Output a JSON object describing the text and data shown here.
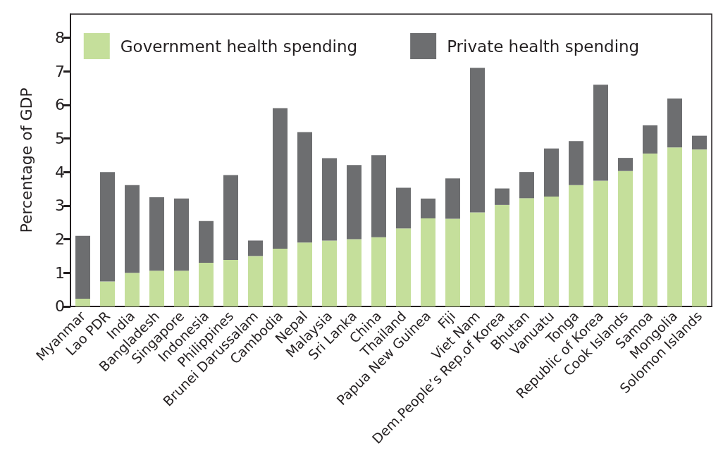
{
  "chart_data": {
    "type": "bar",
    "stacked": true,
    "ylabel": "Percentage of GDP",
    "categories": [
      "Myanmar",
      "Lao PDR",
      "India",
      "Bangladesh",
      "Singapore",
      "Indonesia",
      "Philippines",
      "Brunei Darussalam",
      "Cambodia",
      "Nepal",
      "Malaysia",
      "Sri Lanka",
      "China",
      "Thailand",
      "Papua New Guinea",
      "Fiji",
      "Viet Nam",
      "Dem.People’s Rep.of Korea",
      "Bhutan",
      "Vanuatu",
      "Tonga",
      "Republic of Korea",
      "Cook Islands",
      "Samoa",
      "Mongolia",
      "Solomon Islands"
    ],
    "series": [
      {
        "name": "Government health spending",
        "color": "#c5df9b",
        "values": [
          0.23,
          0.74,
          1.0,
          1.06,
          1.06,
          1.3,
          1.38,
          1.5,
          1.72,
          1.9,
          1.96,
          2.0,
          2.06,
          2.32,
          2.62,
          2.61,
          2.8,
          3.02,
          3.22,
          3.27,
          3.61,
          3.74,
          4.03,
          4.55,
          4.73,
          4.67
        ]
      },
      {
        "name": "Private health spending",
        "color": "#6d6e70",
        "values": [
          1.87,
          3.26,
          2.61,
          2.19,
          2.15,
          1.24,
          2.53,
          0.46,
          4.18,
          3.29,
          2.45,
          2.21,
          2.44,
          1.21,
          0.59,
          1.2,
          4.3,
          0.49,
          0.78,
          1.43,
          1.31,
          2.86,
          0.39,
          0.84,
          1.46,
          0.41
        ]
      }
    ],
    "ylim": [
      0,
      8.7
    ],
    "yticks": [
      0,
      1,
      2,
      3,
      4,
      5,
      6,
      7,
      8
    ],
    "grid": false,
    "legend": "top"
  }
}
